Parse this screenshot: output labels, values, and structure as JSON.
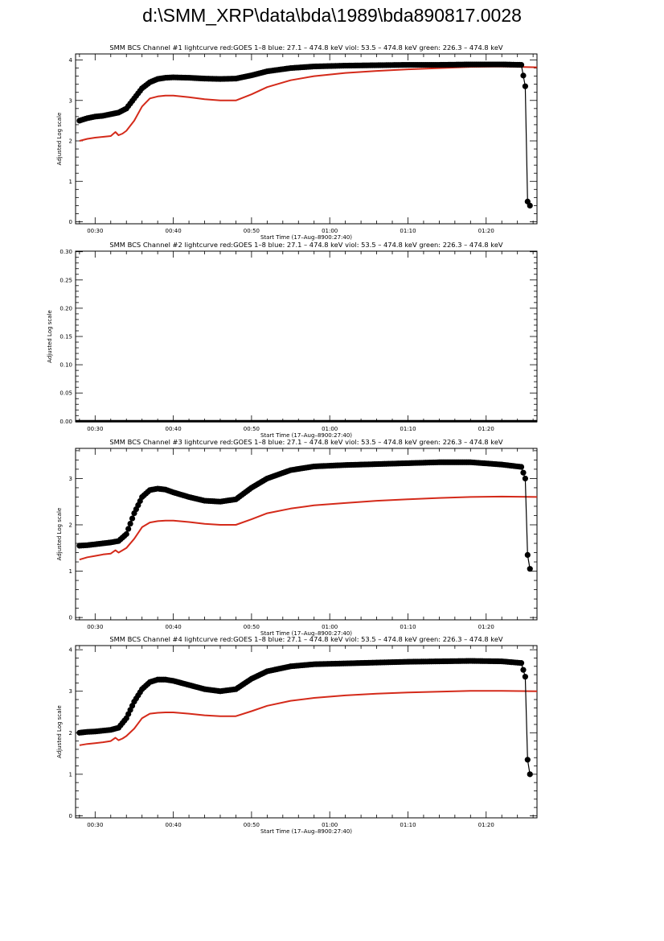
{
  "page": {
    "title": "d:\\SMM_XRP\\data\\bda\\1989\\bda890817.0028"
  },
  "colors": {
    "goes": "#d42a1a",
    "bcs": "#000000",
    "axis": "#000000",
    "background": "#ffffff"
  },
  "chart_data": [
    {
      "type": "line",
      "title": "SMM BCS Channel #1 lightcurve  red:GOES 1–8  blue: 27.1 – 474.8 keV  viol: 53.5 – 474.8 keV  green: 226.3 – 474.8 keV",
      "xlabel": "Start Time (17–Aug–8900:27:40)",
      "ylabel": "Adjusted Log scale",
      "xlim": [
        27.5,
        86.5
      ],
      "ylim": [
        -0.05,
        4.15
      ],
      "yticks": [
        0,
        1,
        2,
        3,
        4
      ],
      "ytick_labels": [
        "0",
        "1",
        "2",
        "3",
        "4"
      ],
      "xticks": [
        30,
        40,
        50,
        60,
        70,
        80
      ],
      "xtick_labels": [
        "00:30",
        "00:40",
        "00:50",
        "01:00",
        "01:10",
        "01:20"
      ],
      "grid": false,
      "series": [
        {
          "name": "red:GOES 1–8",
          "color": "#d42a1a",
          "style": "line",
          "x": [
            28,
            29,
            30,
            31,
            32,
            32.6,
            33,
            33.5,
            34,
            35,
            36,
            37,
            38,
            39,
            40,
            42,
            44,
            46,
            48,
            50,
            52,
            55,
            58,
            62,
            66,
            70,
            74,
            78,
            82,
            86.5
          ],
          "y": [
            2.0,
            2.05,
            2.08,
            2.1,
            2.12,
            2.22,
            2.14,
            2.18,
            2.25,
            2.5,
            2.85,
            3.05,
            3.1,
            3.12,
            3.12,
            3.08,
            3.03,
            3.0,
            3.0,
            3.15,
            3.33,
            3.5,
            3.6,
            3.68,
            3.73,
            3.77,
            3.8,
            3.83,
            3.84,
            3.82
          ]
        },
        {
          "name": "",
          "color": "#000000",
          "style": "dots",
          "x": [
            28,
            29,
            30,
            31,
            32,
            33,
            34,
            35,
            36,
            37,
            38,
            39,
            40,
            42,
            44,
            46,
            48,
            50,
            52,
            55,
            58,
            62,
            66,
            70,
            74,
            78,
            82,
            84.5,
            85,
            85.3,
            85.6
          ],
          "y": [
            2.5,
            2.56,
            2.6,
            2.62,
            2.66,
            2.7,
            2.8,
            3.05,
            3.3,
            3.45,
            3.53,
            3.56,
            3.57,
            3.56,
            3.54,
            3.53,
            3.54,
            3.62,
            3.72,
            3.8,
            3.84,
            3.86,
            3.87,
            3.88,
            3.88,
            3.89,
            3.89,
            3.88,
            3.35,
            0.5,
            0.4
          ]
        }
      ]
    },
    {
      "type": "line",
      "title": "SMM BCS Channel #2 lightcurve  red:GOES 1–8  blue: 27.1 – 474.8 keV  viol: 53.5 – 474.8 keV  green: 226.3 – 474.8 keV",
      "xlabel": "Start Time (17–Aug–8900:27:40)",
      "ylabel": "Adjusted Log scale",
      "xlim": [
        27.5,
        86.5
      ],
      "ylim": [
        -0.001,
        0.301
      ],
      "yticks": [
        0,
        0.05,
        0.1,
        0.15,
        0.2,
        0.25,
        0.3
      ],
      "ytick_labels": [
        "0.00",
        "0.05",
        "0.10",
        "0.15",
        "0.20",
        "0.25",
        "0.30"
      ],
      "xticks": [
        30,
        40,
        50,
        60,
        70,
        80
      ],
      "xtick_labels": [
        "00:30",
        "00:40",
        "00:50",
        "01:00",
        "01:10",
        "01:20"
      ],
      "grid": false,
      "series": [
        {
          "name": "",
          "color": "#000000",
          "style": "line",
          "x": [
            27.5,
            86.5
          ],
          "y": [
            0,
            0
          ]
        }
      ]
    },
    {
      "type": "line",
      "title": "SMM BCS Channel #3 lightcurve  red:GOES 1–8  blue: 27.1 – 474.8 keV  viol: 53.5 – 474.8 keV  green: 226.3 – 474.8 keV",
      "xlabel": "Start Time (17–Aug–8900:27:40)",
      "ylabel": "Adjusted Log scale",
      "xlim": [
        27.5,
        86.5
      ],
      "ylim": [
        -0.05,
        3.65
      ],
      "yticks": [
        0,
        1,
        2,
        3
      ],
      "ytick_labels": [
        "0",
        "1",
        "2",
        "3"
      ],
      "xticks": [
        30,
        40,
        50,
        60,
        70,
        80
      ],
      "xtick_labels": [
        "00:30",
        "00:40",
        "00:50",
        "01:00",
        "01:10",
        "01:20"
      ],
      "grid": false,
      "series": [
        {
          "name": "red:GOES 1–8",
          "color": "#d42a1a",
          "style": "line",
          "x": [
            28,
            29,
            30,
            31,
            32,
            32.6,
            33,
            33.5,
            34,
            35,
            36,
            37,
            38,
            39,
            40,
            42,
            44,
            46,
            48,
            50,
            52,
            55,
            58,
            62,
            66,
            70,
            74,
            78,
            82,
            86.5
          ],
          "y": [
            1.25,
            1.3,
            1.33,
            1.36,
            1.38,
            1.45,
            1.4,
            1.45,
            1.5,
            1.7,
            1.95,
            2.05,
            2.08,
            2.09,
            2.09,
            2.06,
            2.02,
            2.0,
            2.0,
            2.12,
            2.25,
            2.35,
            2.42,
            2.47,
            2.52,
            2.55,
            2.58,
            2.6,
            2.61,
            2.6
          ]
        },
        {
          "name": "",
          "color": "#000000",
          "style": "dots",
          "x": [
            28,
            29,
            30,
            31,
            32,
            33,
            34,
            35,
            36,
            37,
            38,
            39,
            40,
            42,
            44,
            46,
            48,
            50,
            52,
            55,
            58,
            62,
            66,
            70,
            74,
            78,
            82,
            84.5,
            85,
            85.3,
            85.6
          ],
          "y": [
            1.55,
            1.56,
            1.58,
            1.6,
            1.62,
            1.65,
            1.8,
            2.25,
            2.6,
            2.75,
            2.78,
            2.76,
            2.7,
            2.6,
            2.52,
            2.5,
            2.55,
            2.8,
            3.0,
            3.18,
            3.26,
            3.29,
            3.31,
            3.33,
            3.35,
            3.35,
            3.3,
            3.25,
            3.0,
            1.35,
            1.05
          ]
        }
      ]
    },
    {
      "type": "line",
      "title": "SMM BCS Channel #4 lightcurve  red:GOES 1–8  blue: 27.1 – 474.8 keV  viol: 53.5 – 474.8 keV  green: 226.3 – 474.8 keV",
      "xlabel": "Start Time (17–Aug–8900:27:40)",
      "ylabel": "Adjusted Log scale",
      "xlim": [
        27.5,
        86.5
      ],
      "ylim": [
        -0.05,
        4.1
      ],
      "yticks": [
        0,
        1,
        2,
        3,
        4
      ],
      "ytick_labels": [
        "0",
        "1",
        "2",
        "3",
        "4"
      ],
      "xticks": [
        30,
        40,
        50,
        60,
        70,
        80
      ],
      "xtick_labels": [
        "00:30",
        "00:40",
        "00:50",
        "01:00",
        "01:10",
        "01:20"
      ],
      "grid": false,
      "series": [
        {
          "name": "red:GOES 1–8",
          "color": "#d42a1a",
          "style": "line",
          "x": [
            28,
            29,
            30,
            31,
            32,
            32.6,
            33,
            33.5,
            34,
            35,
            36,
            37,
            38,
            39,
            40,
            42,
            44,
            46,
            48,
            50,
            52,
            55,
            58,
            62,
            66,
            70,
            74,
            78,
            82,
            86.5
          ],
          "y": [
            1.7,
            1.73,
            1.75,
            1.77,
            1.8,
            1.88,
            1.82,
            1.86,
            1.92,
            2.1,
            2.35,
            2.46,
            2.48,
            2.49,
            2.49,
            2.46,
            2.42,
            2.4,
            2.4,
            2.52,
            2.65,
            2.77,
            2.84,
            2.9,
            2.94,
            2.97,
            2.99,
            3.01,
            3.01,
            3.0
          ]
        },
        {
          "name": "",
          "color": "#000000",
          "style": "dots",
          "x": [
            28,
            29,
            30,
            31,
            32,
            33,
            34,
            35,
            36,
            37,
            38,
            39,
            40,
            42,
            44,
            46,
            48,
            50,
            52,
            55,
            58,
            62,
            66,
            70,
            74,
            78,
            82,
            84.5,
            85,
            85.3,
            85.6
          ],
          "y": [
            2.0,
            2.02,
            2.03,
            2.05,
            2.07,
            2.12,
            2.35,
            2.75,
            3.05,
            3.22,
            3.28,
            3.28,
            3.25,
            3.15,
            3.05,
            3.0,
            3.05,
            3.3,
            3.48,
            3.6,
            3.65,
            3.67,
            3.69,
            3.71,
            3.72,
            3.73,
            3.72,
            3.68,
            3.35,
            1.35,
            1.0
          ]
        }
      ]
    }
  ]
}
